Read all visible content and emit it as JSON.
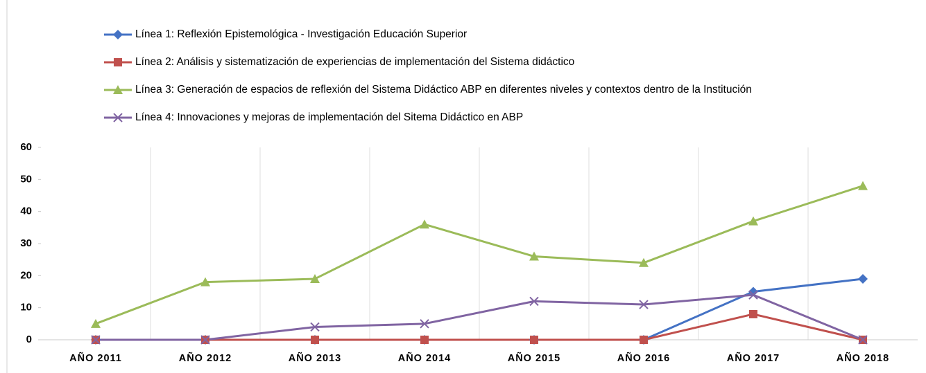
{
  "chart_data": {
    "type": "line",
    "categories": [
      "AÑO 2011",
      "AÑO 2012",
      "AÑO 2013",
      "AÑO 2014",
      "AÑO 2015",
      "AÑO 2016",
      "AÑO 2017",
      "AÑO 2018"
    ],
    "series": [
      {
        "name": "Línea 1: Reflexión Epistemológica - Investigación Educación Superior",
        "color": "#4472c4",
        "marker": "diamond",
        "values": [
          0,
          0,
          0,
          0,
          0,
          0,
          15,
          19
        ]
      },
      {
        "name": "Línea 2: Análisis y sistematización de experiencias de implementación del Sistema didáctico",
        "color": "#c0504d",
        "marker": "square",
        "values": [
          0,
          0,
          0,
          0,
          0,
          0,
          8,
          0
        ]
      },
      {
        "name": "Línea 3: Generación de espacios de reflexión del Sistema Didáctico ABP en diferentes niveles y contextos dentro de la Institución",
        "color": "#9bbb59",
        "marker": "triangle",
        "values": [
          5,
          18,
          19,
          36,
          26,
          24,
          37,
          48
        ]
      },
      {
        "name": "Línea 4: Innovaciones y mejoras de implementación del Sitema Didáctico en ABP",
        "color": "#8064a2",
        "marker": "x",
        "values": [
          0,
          0,
          4,
          5,
          12,
          11,
          14,
          0
        ]
      }
    ],
    "ylim": [
      0,
      60
    ],
    "yticks": [
      0,
      10,
      20,
      30,
      40,
      50,
      60
    ],
    "grid": "x",
    "legend": "top"
  }
}
